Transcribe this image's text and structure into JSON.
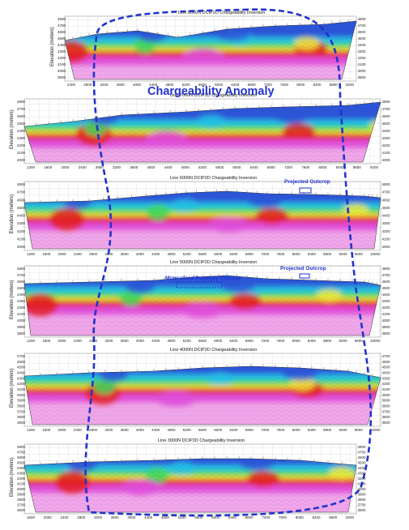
{
  "annotations": {
    "anomaly": "Chargeability Anomaly",
    "outcrop_a": "Projected Outcrop",
    "outcrop_b": "Projected Outcrop",
    "porphyry": "Mineralized Porphyry Outcrop"
  },
  "sections": [
    {
      "title": "Line 8000N   DCIP2D Chargeability Inversion",
      "ylabel": "Elevation (meters)",
      "yticks": [
        "4800",
        "4700",
        "4600",
        "4500",
        "4400",
        "4300",
        "4200",
        "4100",
        "4000",
        "3900"
      ],
      "xticks": [
        "2400",
        "2800",
        "3200",
        "3600",
        "4000",
        "4400",
        "4800",
        "5200",
        "5600",
        "6000",
        "6400",
        "6800",
        "7200",
        "7600",
        "8000",
        "8400",
        "8800",
        "9200"
      ]
    },
    {
      "title": "Line 7000N   DCIP2D Chargeability Inversion",
      "ylabel": "Elevation (meters)",
      "yticks": [
        "4800",
        "4700",
        "4600",
        "4500",
        "4400",
        "4300",
        "4200",
        "4100",
        "4000"
      ],
      "xticks": [
        "1200",
        "1600",
        "2000",
        "2400",
        "2800",
        "3200",
        "3600",
        "4000",
        "4400",
        "4800",
        "5200",
        "5600",
        "6000",
        "6400",
        "6800",
        "7200",
        "7600",
        "8000",
        "8400",
        "8800",
        "9200"
      ]
    },
    {
      "title": "Line 6000N   DCIP2D Chargeability Inversion",
      "ylabel": "Elevation (meters)",
      "yticks": [
        "4800",
        "4700",
        "4600",
        "4500",
        "4400",
        "4300",
        "4200",
        "4100",
        "4000"
      ],
      "xticks": [
        "1200",
        "1600",
        "2000",
        "2400",
        "2800",
        "3200",
        "3600",
        "4000",
        "4400",
        "4800",
        "5200",
        "5600",
        "6000",
        "6400",
        "6800",
        "7200",
        "7600",
        "8000",
        "8400",
        "8800",
        "9200",
        "9600",
        "10000"
      ]
    },
    {
      "title": "Line 5000N   DCIP2D Chargeability Inversion",
      "ylabel": "Elevation (meters)",
      "yticks": [
        "4800",
        "4700",
        "4600",
        "4500",
        "4400",
        "4300",
        "4200",
        "4100",
        "4000",
        "3900",
        "3800"
      ],
      "xticks": [
        "1200",
        "1600",
        "2000",
        "2400",
        "2800",
        "3200",
        "3600",
        "4000",
        "4400",
        "4800",
        "5200",
        "5600",
        "6000",
        "6400",
        "6800",
        "7200",
        "7600",
        "8000",
        "8400",
        "8800",
        "9200",
        "9600",
        "10000"
      ]
    },
    {
      "title": "Line 4000N   DCIP2D Chargeability Inversion",
      "ylabel": "Elevation (meters)",
      "yticks": [
        "4700",
        "4600",
        "4500",
        "4400",
        "4300",
        "4200",
        "4100",
        "4000",
        "3900",
        "3800",
        "3700",
        "3600",
        "3500"
      ],
      "xticks": [
        "1200",
        "1600",
        "2000",
        "2400",
        "2800",
        "3200",
        "3600",
        "4000",
        "4400",
        "4800",
        "5200",
        "5600",
        "6000",
        "6400",
        "6800",
        "7200",
        "7600",
        "8000",
        "8400",
        "8800",
        "9200",
        "9600",
        "10000"
      ]
    },
    {
      "title": "Line 3000N   DCIP2D Chargeability Inversion",
      "ylabel": "Elevation (meters)",
      "yticks": [
        "4800",
        "4700",
        "4600",
        "4500",
        "4400",
        "4300",
        "4200",
        "4100",
        "4000",
        "3900",
        "3800",
        "3700",
        "3600"
      ],
      "xticks": [
        "1600",
        "2000",
        "2400",
        "2800",
        "3200",
        "3600",
        "4000",
        "4400",
        "4800",
        "5200",
        "5600",
        "6000",
        "6400",
        "6800",
        "7200",
        "7600",
        "8000",
        "8400",
        "8800",
        "9200"
      ]
    }
  ],
  "colors": {
    "blue": "#2b55d8",
    "cyan": "#22c3e6",
    "green": "#3fd95a",
    "yellow": "#f2ea3a",
    "orange": "#f5902b",
    "red": "#e42020",
    "magenta": "#e14fdc",
    "pink": "#f0a6ea",
    "annotation": "#2233cc"
  }
}
